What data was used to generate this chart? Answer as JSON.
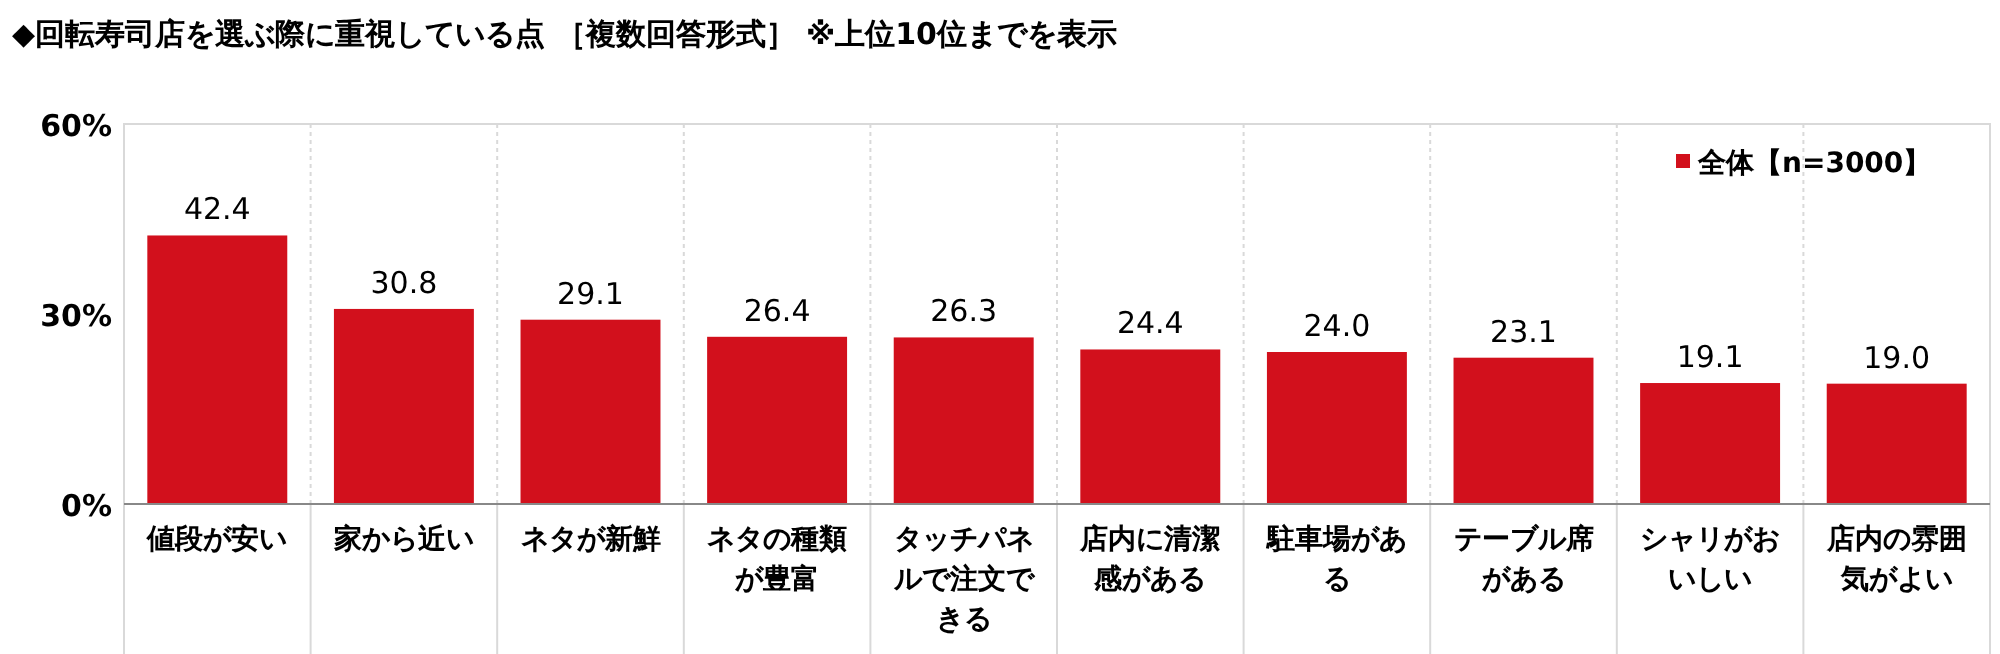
{
  "chart_data": {
    "type": "bar",
    "title": "◆回転寿司店を選ぶ際に重視している点 ［複数回答形式］ ※上位10位までを表示",
    "categories": [
      "値段が安い",
      "家から近い",
      "ネタが新鮮",
      "ネタの種類が豊富",
      "タッチパネルで注文できる",
      "店内に清潔感がある",
      "駐車場がある",
      "テーブル席がある",
      "シャリがおいしい",
      "店内の雰囲気がよい"
    ],
    "series": [
      {
        "name": "全体【n=3000】",
        "color": "#d2101c",
        "values": [
          42.4,
          30.8,
          29.1,
          26.4,
          26.3,
          24.4,
          24.0,
          23.1,
          19.1,
          19.0
        ],
        "value_labels": [
          "42.4",
          "30.8",
          "29.1",
          "26.4",
          "26.3",
          "24.4",
          "24.0",
          "23.1",
          "19.1",
          "19.0"
        ]
      }
    ],
    "ylim": [
      0,
      60
    ],
    "yticks": [
      {
        "value": 0,
        "label": "0%"
      },
      {
        "value": 30,
        "label": "30%"
      },
      {
        "value": 60,
        "label": "60%"
      }
    ],
    "grid": "x",
    "legend": "top right"
  }
}
